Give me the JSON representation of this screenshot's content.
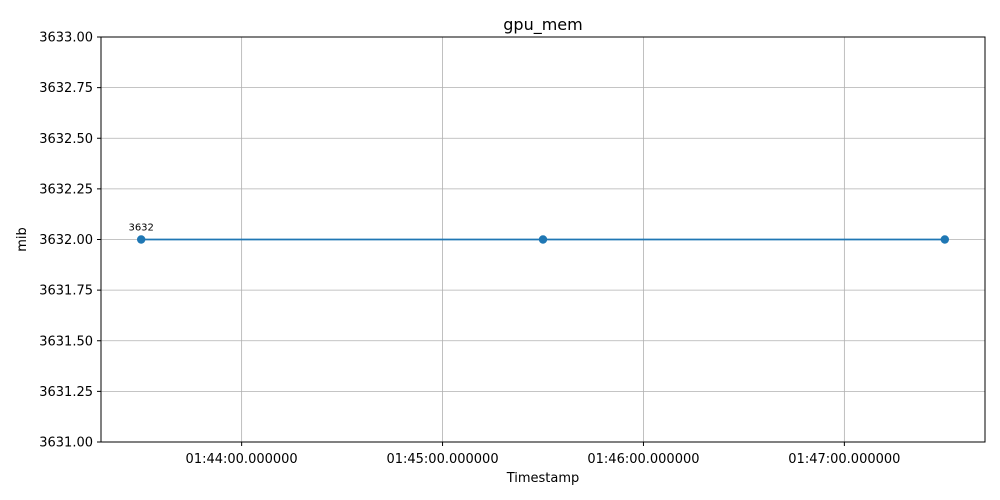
{
  "chart_data": {
    "type": "line",
    "title": "gpu_mem",
    "xlabel": "Timestamp",
    "ylabel": "mib",
    "x": [
      "01:43:30",
      "01:45:30",
      "01:47:30"
    ],
    "xlim": [
      "01:43:18",
      "01:47:42"
    ],
    "xticks": [
      "01:44:00.000000",
      "01:45:00.000000",
      "01:46:00.000000",
      "01:47:00.000000"
    ],
    "ylim": [
      3631.0,
      3633.0
    ],
    "yticks": [
      "3631.00",
      "3631.25",
      "3631.50",
      "3631.75",
      "3632.00",
      "3632.25",
      "3632.50",
      "3632.75",
      "3633.00"
    ],
    "grid": true,
    "series": [
      {
        "values": [
          3632,
          3632,
          3632
        ],
        "color": "#1f77b4",
        "marker": "circle"
      }
    ],
    "annotations": [
      {
        "x": "01:43:30",
        "y": 3632,
        "text": "3632"
      }
    ]
  }
}
